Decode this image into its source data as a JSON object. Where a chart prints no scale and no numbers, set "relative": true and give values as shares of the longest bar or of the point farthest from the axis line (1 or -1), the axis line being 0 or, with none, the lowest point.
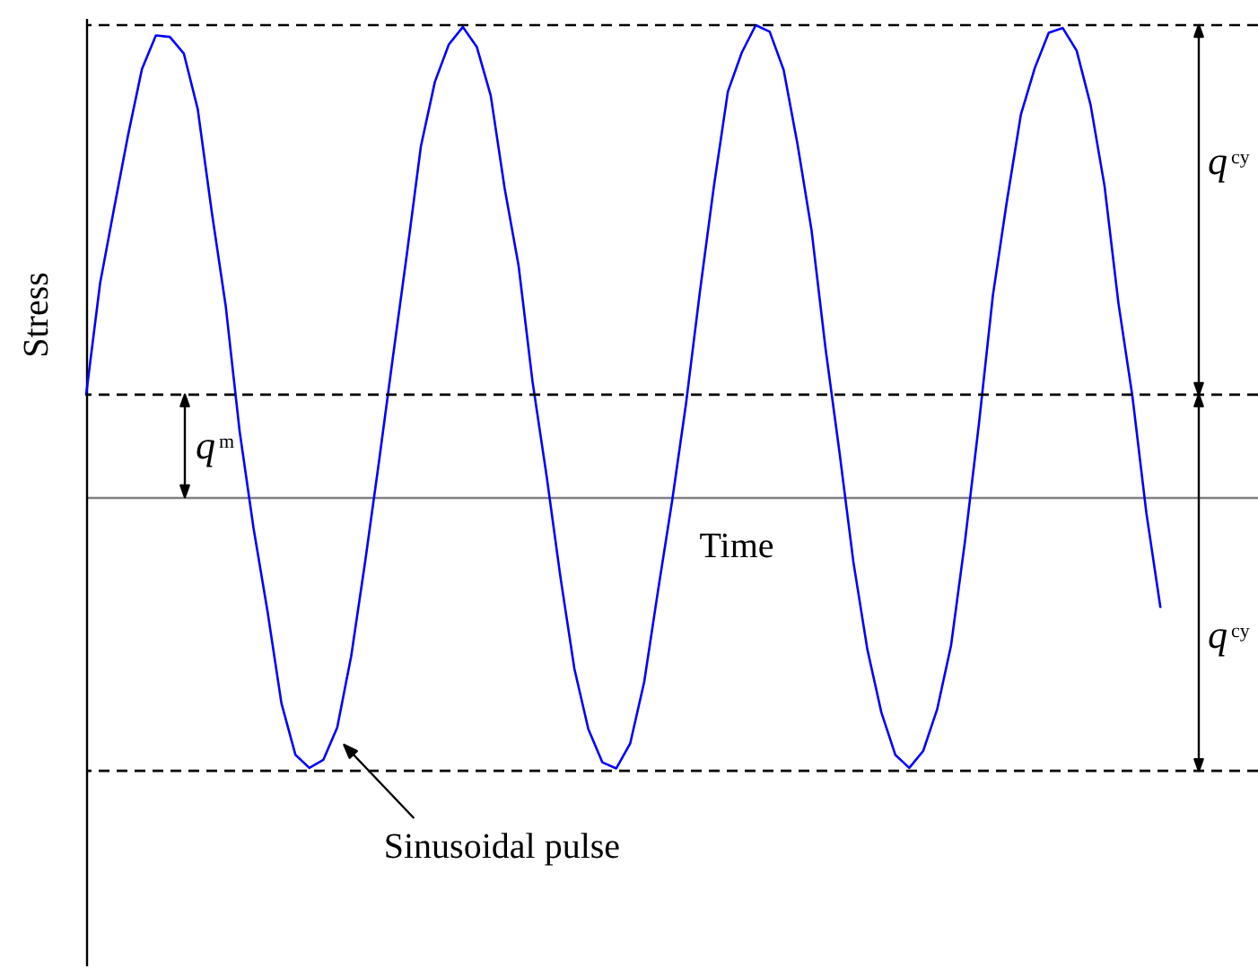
{
  "chart_data": {
    "type": "line",
    "relative": true,
    "xlabel": "Time",
    "ylabel": "Stress",
    "categories": [
      null,
      null,
      null,
      null,
      null,
      null,
      null,
      null,
      null,
      null,
      null,
      null,
      null,
      null,
      null,
      null,
      null,
      null,
      null,
      null,
      null,
      null,
      null,
      null,
      null,
      null,
      null,
      null,
      null,
      null,
      null,
      null,
      null,
      null,
      null,
      null,
      null,
      null,
      null,
      null,
      null,
      null,
      null,
      null,
      null,
      null,
      null,
      null,
      null,
      null,
      null,
      null,
      null,
      null,
      null,
      null,
      null,
      null,
      null,
      null,
      null,
      null,
      null,
      null,
      null,
      null,
      null,
      null,
      null,
      null,
      null,
      null,
      null,
      null,
      null,
      null,
      null,
      null,
      null,
      null,
      null,
      null,
      null,
      null,
      null
    ],
    "series": [
      {
        "color": "#0000ff",
        "values": [
          0.217,
          0.453,
          0.611,
          0.766,
          0.907,
          0.978,
          0.975,
          0.94,
          0.822,
          0.605,
          0.406,
          0.14,
          -0.066,
          -0.242,
          -0.437,
          -0.546,
          -0.574,
          -0.557,
          -0.488,
          -0.337,
          -0.137,
          0.077,
          0.299,
          0.517,
          0.744,
          0.88,
          0.959,
          0.996,
          0.954,
          0.851,
          0.654,
          0.49,
          0.244,
          0.046,
          -0.17,
          -0.364,
          -0.492,
          -0.562,
          -0.575,
          -0.522,
          -0.392,
          -0.197,
          -0.009,
          0.198,
          0.436,
          0.659,
          0.859,
          0.942,
          1,
          0.986,
          0.905,
          0.746,
          0.565,
          0.315,
          0.095,
          -0.138,
          -0.323,
          -0.456,
          -0.546,
          -0.574,
          -0.538,
          -0.45,
          -0.314,
          -0.093,
          0.156,
          0.428,
          0.627,
          0.81,
          0.909,
          0.984,
          0.994,
          0.946,
          0.831,
          0.659,
          0.41,
          0.213,
          -0.034,
          -0.233,
          null,
          null,
          null,
          null,
          null,
          null,
          null
        ]
      }
    ],
    "ref_lines": [
      {
        "axis": "y",
        "value": 0.217,
        "color": "#000000",
        "line_style": "dashed"
      },
      {
        "axis": "y",
        "value": 1,
        "color": "#000000",
        "line_style": "dashed"
      },
      {
        "axis": "y",
        "value": -0.58,
        "color": "#000000",
        "line_style": "dashed"
      }
    ],
    "annotations": [
      "q$^{m}$",
      "q$^{cy}$",
      "q$^{cy}$",
      "Sinusoidal pulse"
    ]
  }
}
